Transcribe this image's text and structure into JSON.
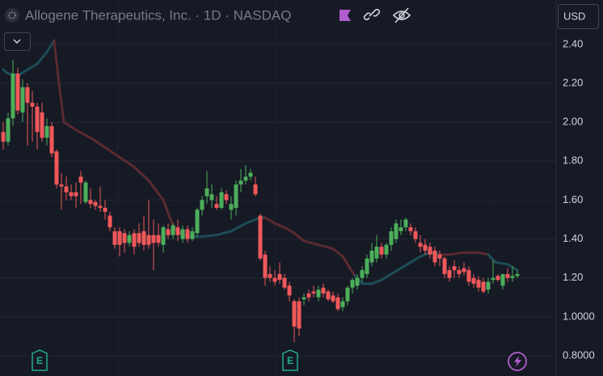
{
  "chart_data": {
    "type": "candlestick",
    "title": "Allogene Therapeutics, Inc. · 1D · NASDAQ",
    "currency": "USD",
    "markers": [
      "E",
      "E"
    ],
    "ylim": [
      0.696,
      2.628
    ],
    "yticks": [
      {
        "value": 2.4,
        "label": "2.40"
      },
      {
        "value": 2.2,
        "label": "2.20"
      },
      {
        "value": 2.0,
        "label": "2.00"
      },
      {
        "value": 1.8,
        "label": "1.80"
      },
      {
        "value": 1.6,
        "label": "1.60"
      },
      {
        "value": 1.4,
        "label": "1.40"
      },
      {
        "value": 1.2,
        "label": "1.20"
      },
      {
        "value": 1.0,
        "label": "1.0000"
      },
      {
        "value": 0.8,
        "label": "0.8000"
      }
    ],
    "grid": true,
    "up_color": "#4caf5a",
    "down_color": "#f0585a",
    "candles": {
      "open": [
        1.95,
        1.9,
        2.02,
        2.25,
        2.05,
        2.18,
        2.1,
        2.08,
        2.05,
        1.92,
        1.98,
        1.85,
        1.68,
        1.67,
        1.64,
        1.64,
        1.72,
        1.59,
        1.6,
        1.59,
        1.57,
        1.56,
        1.52,
        1.44,
        1.44,
        1.43,
        1.38,
        1.43,
        1.43,
        1.44,
        1.42,
        1.42,
        1.42,
        1.37,
        1.45,
        1.42,
        1.46,
        1.4,
        1.45,
        1.4,
        1.43,
        1.55,
        1.62,
        1.6,
        1.58,
        1.56,
        1.63,
        1.55,
        1.56,
        1.68,
        1.7,
        1.72,
        1.68,
        1.52,
        1.32,
        1.22,
        1.2,
        1.22,
        1.2,
        1.16,
        1.08,
        1.08,
        1.09,
        1.12,
        1.13,
        1.1,
        1.15,
        1.13,
        1.11,
        1.1,
        1.05,
        1.08,
        1.15,
        1.16,
        1.2,
        1.22,
        1.28,
        1.3,
        1.36,
        1.32,
        1.37,
        1.4,
        1.44,
        1.46,
        1.46,
        1.44,
        1.38,
        1.37,
        1.36,
        1.34,
        1.32,
        1.3,
        1.24,
        1.26,
        1.24,
        1.25,
        1.24,
        1.2,
        1.19,
        1.18,
        1.14,
        1.19,
        1.21,
        1.16,
        1.22,
        1.2,
        1.21
      ],
      "high": [
        2.0,
        2.05,
        2.32,
        2.28,
        2.22,
        2.2,
        2.16,
        2.1,
        2.1,
        2.02,
        2.0,
        1.86,
        1.74,
        1.72,
        1.68,
        1.69,
        1.75,
        1.7,
        1.66,
        1.6,
        1.67,
        1.6,
        1.54,
        1.46,
        1.46,
        1.45,
        1.44,
        1.45,
        1.48,
        1.52,
        1.6,
        1.5,
        1.48,
        1.47,
        1.48,
        1.48,
        1.5,
        1.47,
        1.47,
        1.46,
        1.56,
        1.62,
        1.75,
        1.68,
        1.62,
        1.66,
        1.65,
        1.62,
        1.7,
        1.76,
        1.78,
        1.76,
        1.72,
        1.53,
        1.34,
        1.26,
        1.24,
        1.28,
        1.22,
        1.18,
        1.09,
        1.1,
        1.12,
        1.14,
        1.16,
        1.16,
        1.17,
        1.14,
        1.13,
        1.12,
        1.1,
        1.16,
        1.2,
        1.22,
        1.26,
        1.32,
        1.38,
        1.42,
        1.38,
        1.38,
        1.46,
        1.5,
        1.5,
        1.51,
        1.48,
        1.46,
        1.42,
        1.4,
        1.38,
        1.36,
        1.34,
        1.31,
        1.26,
        1.29,
        1.26,
        1.28,
        1.26,
        1.22,
        1.21,
        1.2,
        1.2,
        1.29,
        1.22,
        1.22,
        1.25,
        1.26,
        1.24
      ],
      "low": [
        1.86,
        1.88,
        1.98,
        2.04,
        2.0,
        1.88,
        1.9,
        1.86,
        1.9,
        1.88,
        1.82,
        1.66,
        1.55,
        1.6,
        1.6,
        1.56,
        1.58,
        1.58,
        1.56,
        1.55,
        1.54,
        1.5,
        1.44,
        1.35,
        1.31,
        1.33,
        1.36,
        1.32,
        1.36,
        1.34,
        1.35,
        1.24,
        1.36,
        1.33,
        1.4,
        1.4,
        1.39,
        1.38,
        1.38,
        1.39,
        1.41,
        1.52,
        1.58,
        1.56,
        1.55,
        1.55,
        1.58,
        1.5,
        1.52,
        1.64,
        1.68,
        1.7,
        1.62,
        1.29,
        1.16,
        1.18,
        1.16,
        1.17,
        1.14,
        1.08,
        0.87,
        0.9,
        1.06,
        1.08,
        1.1,
        1.08,
        1.1,
        1.08,
        1.07,
        1.03,
        1.03,
        1.06,
        1.12,
        1.14,
        1.18,
        1.2,
        1.26,
        1.28,
        1.3,
        1.3,
        1.34,
        1.38,
        1.42,
        1.44,
        1.42,
        1.38,
        1.33,
        1.32,
        1.3,
        1.26,
        1.26,
        1.2,
        1.18,
        1.2,
        1.2,
        1.21,
        1.16,
        1.15,
        1.13,
        1.12,
        1.12,
        1.17,
        1.18,
        1.14,
        1.18,
        1.18,
        1.2
      ],
      "close": [
        1.9,
        2.02,
        2.25,
        2.06,
        2.18,
        2.1,
        2.08,
        1.95,
        1.92,
        1.98,
        1.84,
        1.68,
        1.67,
        1.64,
        1.62,
        1.62,
        1.69,
        1.69,
        1.58,
        1.57,
        1.56,
        1.54,
        1.46,
        1.37,
        1.37,
        1.38,
        1.42,
        1.36,
        1.38,
        1.37,
        1.37,
        1.38,
        1.38,
        1.46,
        1.42,
        1.47,
        1.42,
        1.45,
        1.4,
        1.44,
        1.55,
        1.6,
        1.66,
        1.63,
        1.56,
        1.64,
        1.6,
        1.58,
        1.68,
        1.7,
        1.72,
        1.74,
        1.63,
        1.3,
        1.2,
        1.2,
        1.18,
        1.19,
        1.15,
        1.11,
        0.95,
        0.94,
        1.1,
        1.1,
        1.12,
        1.14,
        1.12,
        1.09,
        1.08,
        1.04,
        1.08,
        1.15,
        1.19,
        1.2,
        1.24,
        1.3,
        1.34,
        1.36,
        1.32,
        1.37,
        1.44,
        1.48,
        1.46,
        1.5,
        1.44,
        1.4,
        1.36,
        1.34,
        1.32,
        1.28,
        1.3,
        1.22,
        1.2,
        1.24,
        1.22,
        1.23,
        1.18,
        1.17,
        1.15,
        1.13,
        1.18,
        1.2,
        1.19,
        1.22,
        1.2,
        1.21,
        1.22
      ]
    },
    "ma": {
      "x": [
        0,
        1,
        3,
        5,
        7,
        9,
        10,
        10.5,
        11.5,
        12.5,
        15,
        18,
        21,
        24,
        27,
        30,
        33,
        34.5,
        35.5,
        37,
        40,
        44,
        47,
        50,
        53,
        54,
        56,
        58,
        60,
        62,
        65,
        68,
        70,
        71,
        72.5,
        74,
        76,
        78,
        80,
        82,
        84,
        86,
        88,
        90,
        92,
        95,
        98,
        100,
        101.5,
        104,
        106
      ],
      "values": [
        2.27,
        2.25,
        2.24,
        2.27,
        2.3,
        2.36,
        2.4,
        2.42,
        2.2,
        2.0,
        1.96,
        1.92,
        1.87,
        1.82,
        1.77,
        1.7,
        1.6,
        1.5,
        1.45,
        1.42,
        1.41,
        1.42,
        1.44,
        1.48,
        1.51,
        1.51,
        1.48,
        1.46,
        1.43,
        1.39,
        1.37,
        1.35,
        1.31,
        1.27,
        1.21,
        1.17,
        1.17,
        1.19,
        1.22,
        1.25,
        1.28,
        1.31,
        1.33,
        1.32,
        1.32,
        1.33,
        1.33,
        1.32,
        1.28,
        1.27,
        1.24
      ],
      "colors": [
        "#1d4d57",
        "#1d4d57",
        "#1d4d57",
        "#1d4d57",
        "#1d4d57",
        "#1d4d57",
        "#1d4d57",
        "#5b2a31",
        "#5b2a31",
        "#5b2a31",
        "#5b2a31",
        "#5b2a31",
        "#5b2a31",
        "#5b2a31",
        "#5b2a31",
        "#5b2a31",
        "#5b2a31",
        "#5b2a31",
        "#5b2a31",
        "#1d4d57",
        "#1d4d57",
        "#1d4d57",
        "#1d4d57",
        "#1d4d57",
        "#1d4d57",
        "#5b2a31",
        "#5b2a31",
        "#5b2a31",
        "#5b2a31",
        "#5b2a31",
        "#5b2a31",
        "#5b2a31",
        "#5b2a31",
        "#5b2a31",
        "#1d4d57",
        "#1d4d57",
        "#1d4d57",
        "#1d4d57",
        "#1d4d57",
        "#1d4d57",
        "#1d4d57",
        "#1d4d57",
        "#1d4d57",
        "#5b2a31",
        "#5b2a31",
        "#5b2a31",
        "#5b2a31",
        "#1d4d57",
        "#1d4d57",
        "#1d4d57",
        "#1d4d57"
      ]
    }
  }
}
